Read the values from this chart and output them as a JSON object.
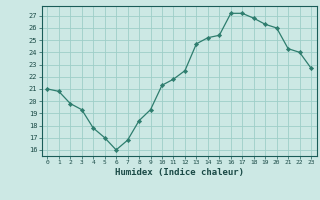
{
  "x": [
    0,
    1,
    2,
    3,
    4,
    5,
    6,
    7,
    8,
    9,
    10,
    11,
    12,
    13,
    14,
    15,
    16,
    17,
    18,
    19,
    20,
    21,
    22,
    23
  ],
  "y": [
    21,
    20.8,
    19.8,
    19.3,
    17.8,
    17.0,
    16.0,
    16.8,
    18.4,
    19.3,
    21.3,
    21.8,
    22.5,
    24.7,
    25.2,
    25.4,
    27.2,
    27.2,
    26.8,
    26.3,
    26.0,
    24.3,
    24.0,
    22.7
  ],
  "line_color": "#2e7d6e",
  "marker": "D",
  "marker_size": 2.2,
  "bg_color": "#cce8e4",
  "grid_color": "#9ecec8",
  "axis_color": "#1a5c58",
  "text_color": "#1a4a46",
  "xlabel": "Humidex (Indice chaleur)",
  "ylim": [
    15.5,
    27.8
  ],
  "yticks": [
    16,
    17,
    18,
    19,
    20,
    21,
    22,
    23,
    24,
    25,
    26,
    27
  ],
  "xticks": [
    0,
    1,
    2,
    3,
    4,
    5,
    6,
    7,
    8,
    9,
    10,
    11,
    12,
    13,
    14,
    15,
    16,
    17,
    18,
    19,
    20,
    21,
    22,
    23
  ],
  "xlim": [
    -0.5,
    23.5
  ]
}
